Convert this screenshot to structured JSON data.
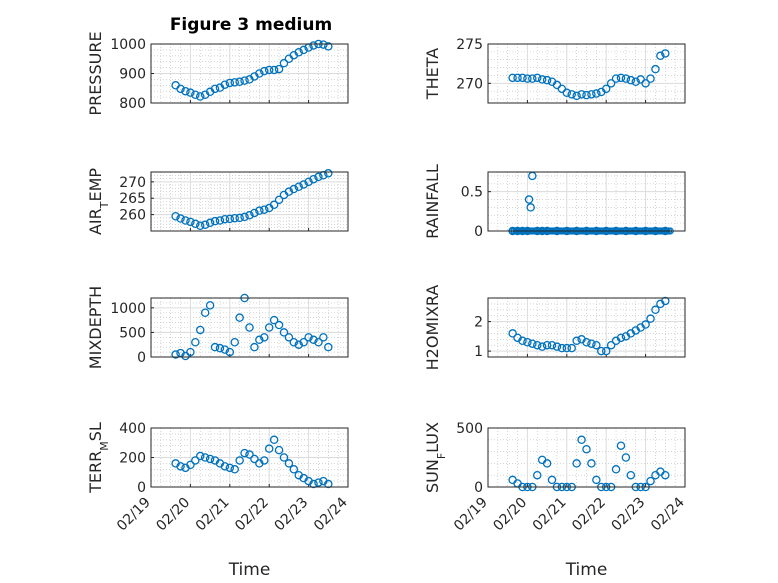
{
  "figure": {
    "title": "Figure 3 medium",
    "marker_color": "#0072BD",
    "axes_color": "#262626",
    "grid": true,
    "minor_grid": true
  },
  "chart_data": [
    {
      "type": "scatter",
      "ylabel": "PRESSURE",
      "ylim": [
        800,
        1000
      ],
      "yticks": [
        800,
        900,
        1000
      ],
      "ytick_labels": [
        "800",
        "900",
        "1000"
      ],
      "xlim": [
        "02/19",
        "02/24"
      ],
      "show_xticklabels": false,
      "x": [
        "02/19 15:00",
        "02/19 18:00",
        "02/19 21:00",
        "02/20 00:00",
        "02/20 03:00",
        "02/20 06:00",
        "02/20 09:00",
        "02/20 12:00",
        "02/20 15:00",
        "02/20 18:00",
        "02/20 21:00",
        "02/21 00:00",
        "02/21 03:00",
        "02/21 06:00",
        "02/21 09:00",
        "02/21 12:00",
        "02/21 15:00",
        "02/21 18:00",
        "02/21 21:00",
        "02/22 00:00",
        "02/22 03:00",
        "02/22 06:00",
        "02/22 09:00",
        "02/22 12:00",
        "02/22 15:00",
        "02/22 18:00",
        "02/22 21:00",
        "02/23 00:00",
        "02/23 03:00",
        "02/23 06:00",
        "02/23 09:00",
        "02/23 12:00"
      ],
      "y": [
        860,
        848,
        840,
        835,
        828,
        822,
        828,
        838,
        848,
        852,
        862,
        868,
        870,
        872,
        876,
        880,
        890,
        900,
        908,
        912,
        912,
        915,
        935,
        950,
        962,
        972,
        980,
        988,
        995,
        1000,
        998,
        992
      ]
    },
    {
      "type": "scatter",
      "ylabel": "THETA",
      "ylim": [
        267.5,
        275
      ],
      "yticks": [
        270,
        275
      ],
      "ytick_labels": [
        "270",
        "275"
      ],
      "xlim": [
        "02/19",
        "02/24"
      ],
      "show_xticklabels": false,
      "x": [
        "02/19 15:00",
        "02/19 18:00",
        "02/19 21:00",
        "02/20 00:00",
        "02/20 03:00",
        "02/20 06:00",
        "02/20 09:00",
        "02/20 12:00",
        "02/20 15:00",
        "02/20 18:00",
        "02/20 21:00",
        "02/21 00:00",
        "02/21 03:00",
        "02/21 06:00",
        "02/21 09:00",
        "02/21 12:00",
        "02/21 15:00",
        "02/21 18:00",
        "02/21 21:00",
        "02/22 00:00",
        "02/22 03:00",
        "02/22 06:00",
        "02/22 09:00",
        "02/22 12:00",
        "02/22 15:00",
        "02/22 18:00",
        "02/22 21:00",
        "02/23 00:00",
        "02/23 03:00",
        "02/23 06:00",
        "02/23 09:00",
        "02/23 12:00"
      ],
      "y": [
        270.7,
        270.7,
        270.7,
        270.6,
        270.6,
        270.7,
        270.5,
        270.4,
        270.2,
        269.8,
        269.3,
        268.8,
        268.6,
        268.4,
        268.6,
        268.5,
        268.6,
        268.7,
        268.9,
        269.3,
        270.0,
        270.6,
        270.7,
        270.6,
        270.4,
        270.2,
        270.5,
        270.0,
        270.6,
        271.8,
        273.5,
        273.8
      ]
    },
    {
      "type": "scatter",
      "ylabel": "AIR_TEMP",
      "ylim": [
        255,
        273
      ],
      "yticks": [
        260,
        265,
        270
      ],
      "ytick_labels": [
        "260",
        "265",
        "270"
      ],
      "xlim": [
        "02/19",
        "02/24"
      ],
      "show_xticklabels": false,
      "x": [
        "02/19 15:00",
        "02/19 18:00",
        "02/19 21:00",
        "02/20 00:00",
        "02/20 03:00",
        "02/20 06:00",
        "02/20 09:00",
        "02/20 12:00",
        "02/20 15:00",
        "02/20 18:00",
        "02/20 21:00",
        "02/21 00:00",
        "02/21 03:00",
        "02/21 06:00",
        "02/21 09:00",
        "02/21 12:00",
        "02/21 15:00",
        "02/21 18:00",
        "02/21 21:00",
        "02/22 00:00",
        "02/22 03:00",
        "02/22 06:00",
        "02/22 09:00",
        "02/22 12:00",
        "02/22 15:00",
        "02/22 18:00",
        "02/22 21:00",
        "02/23 00:00",
        "02/23 03:00",
        "02/23 06:00",
        "02/23 09:00",
        "02/23 12:00"
      ],
      "y": [
        259.5,
        258.8,
        258.2,
        257.8,
        257.2,
        256.6,
        256.9,
        257.5,
        258.0,
        258.2,
        258.6,
        258.7,
        258.9,
        259.0,
        259.3,
        259.8,
        260.5,
        261.2,
        261.5,
        262.0,
        263.0,
        264.5,
        266.0,
        267.0,
        267.8,
        268.5,
        269.2,
        270.0,
        270.8,
        271.5,
        272.0,
        272.6
      ]
    },
    {
      "type": "scatter",
      "ylabel": "RAINFALL",
      "ylim": [
        0,
        0.75
      ],
      "yticks": [
        0,
        0.5
      ],
      "ytick_labels": [
        "0",
        "0.5"
      ],
      "xlim": [
        "02/19",
        "02/24"
      ],
      "show_xticklabels": false,
      "x": [
        "02/19 15:00",
        "02/19 18:00",
        "02/19 21:00",
        "02/20 00:00",
        "02/20 01:00",
        "02/20 02:00",
        "02/20 03:00",
        "02/20 06:00",
        "02/20 09:00",
        "02/20 12:00",
        "02/20 18:00",
        "02/21 00:00",
        "02/21 06:00",
        "02/21 12:00",
        "02/21 18:00",
        "02/22 00:00",
        "02/22 06:00",
        "02/22 12:00",
        "02/22 18:00",
        "02/23 00:00",
        "02/23 06:00",
        "02/23 12:00"
      ],
      "y": [
        0,
        0,
        0,
        0,
        0.4,
        0.3,
        0.7,
        0,
        0,
        0,
        0,
        0,
        0,
        0,
        0,
        0,
        0,
        0,
        0,
        0,
        0,
        0
      ],
      "dense_zero_band": [
        "02/19 15:00",
        "02/23 15:00"
      ]
    },
    {
      "type": "scatter",
      "ylabel": "MIXDEPTH",
      "ylim": [
        0,
        1200
      ],
      "yticks": [
        0,
        500,
        1000
      ],
      "ytick_labels": [
        "0",
        "500",
        "1000"
      ],
      "xlim": [
        "02/19",
        "02/24"
      ],
      "show_xticklabels": false,
      "x": [
        "02/19 15:00",
        "02/19 18:00",
        "02/19 21:00",
        "02/20 00:00",
        "02/20 03:00",
        "02/20 06:00",
        "02/20 09:00",
        "02/20 12:00",
        "02/20 15:00",
        "02/20 18:00",
        "02/20 21:00",
        "02/21 00:00",
        "02/21 03:00",
        "02/21 06:00",
        "02/21 09:00",
        "02/21 12:00",
        "02/21 15:00",
        "02/21 18:00",
        "02/21 21:00",
        "02/22 00:00",
        "02/22 03:00",
        "02/22 06:00",
        "02/22 09:00",
        "02/22 12:00",
        "02/22 15:00",
        "02/22 18:00",
        "02/22 21:00",
        "02/23 00:00",
        "02/23 03:00",
        "02/23 06:00",
        "02/23 09:00",
        "02/23 12:00"
      ],
      "y": [
        50,
        80,
        20,
        100,
        300,
        550,
        900,
        1050,
        200,
        180,
        150,
        100,
        300,
        800,
        1200,
        600,
        200,
        350,
        400,
        600,
        750,
        650,
        500,
        400,
        300,
        250,
        300,
        400,
        350,
        300,
        400,
        200
      ]
    },
    {
      "type": "scatter",
      "ylabel": "H2OMIXRA",
      "ylim": [
        0.8,
        2.8
      ],
      "yticks": [
        1,
        2
      ],
      "ytick_labels": [
        "1",
        "2"
      ],
      "xlim": [
        "02/19",
        "02/24"
      ],
      "show_xticklabels": false,
      "x": [
        "02/19 15:00",
        "02/19 18:00",
        "02/19 21:00",
        "02/20 00:00",
        "02/20 03:00",
        "02/20 06:00",
        "02/20 09:00",
        "02/20 12:00",
        "02/20 15:00",
        "02/20 18:00",
        "02/20 21:00",
        "02/21 00:00",
        "02/21 03:00",
        "02/21 06:00",
        "02/21 09:00",
        "02/21 12:00",
        "02/21 15:00",
        "02/21 18:00",
        "02/21 21:00",
        "02/22 00:00",
        "02/22 03:00",
        "02/22 06:00",
        "02/22 09:00",
        "02/22 12:00",
        "02/22 15:00",
        "02/22 18:00",
        "02/22 21:00",
        "02/23 00:00",
        "02/23 03:00",
        "02/23 06:00",
        "02/23 09:00",
        "02/23 12:00"
      ],
      "y": [
        1.6,
        1.45,
        1.35,
        1.3,
        1.25,
        1.2,
        1.15,
        1.2,
        1.2,
        1.15,
        1.1,
        1.1,
        1.1,
        1.35,
        1.4,
        1.3,
        1.25,
        1.2,
        1.0,
        1.0,
        1.2,
        1.35,
        1.45,
        1.5,
        1.6,
        1.7,
        1.8,
        1.9,
        2.1,
        2.4,
        2.6,
        2.7
      ]
    },
    {
      "type": "scatter",
      "ylabel": "TERR_MSL",
      "ylim": [
        0,
        400
      ],
      "yticks": [
        0,
        200,
        400
      ],
      "ytick_labels": [
        "0",
        "200",
        "400"
      ],
      "xlim": [
        "02/19",
        "02/24"
      ],
      "xticks": [
        "02/19",
        "02/20",
        "02/21",
        "02/22",
        "02/23",
        "02/24"
      ],
      "xtick_labels": [
        "02/19",
        "02/20",
        "02/21",
        "02/22",
        "02/23",
        "02/24"
      ],
      "xlabel": "Time",
      "show_xticklabels": true,
      "x": [
        "02/19 15:00",
        "02/19 18:00",
        "02/19 21:00",
        "02/20 00:00",
        "02/20 03:00",
        "02/20 06:00",
        "02/20 09:00",
        "02/20 12:00",
        "02/20 15:00",
        "02/20 18:00",
        "02/20 21:00",
        "02/21 00:00",
        "02/21 03:00",
        "02/21 06:00",
        "02/21 09:00",
        "02/21 12:00",
        "02/21 15:00",
        "02/21 18:00",
        "02/21 21:00",
        "02/22 00:00",
        "02/22 03:00",
        "02/22 06:00",
        "02/22 09:00",
        "02/22 12:00",
        "02/22 15:00",
        "02/22 18:00",
        "02/22 21:00",
        "02/23 00:00",
        "02/23 03:00",
        "02/23 06:00",
        "02/23 09:00",
        "02/23 12:00"
      ],
      "y": [
        160,
        140,
        130,
        150,
        180,
        210,
        200,
        190,
        180,
        160,
        140,
        130,
        120,
        180,
        230,
        220,
        190,
        160,
        180,
        260,
        320,
        250,
        200,
        160,
        120,
        80,
        60,
        40,
        20,
        30,
        40,
        20
      ]
    },
    {
      "type": "scatter",
      "ylabel": "SUN_FLUX",
      "ylim": [
        0,
        500
      ],
      "yticks": [
        0,
        500
      ],
      "ytick_labels": [
        "0",
        "500"
      ],
      "xlim": [
        "02/19",
        "02/24"
      ],
      "xticks": [
        "02/19",
        "02/20",
        "02/21",
        "02/22",
        "02/23",
        "02/24"
      ],
      "xtick_labels": [
        "02/19",
        "02/20",
        "02/21",
        "02/22",
        "02/23",
        "02/24"
      ],
      "xlabel": "Time",
      "show_xticklabels": true,
      "x": [
        "02/19 15:00",
        "02/19 18:00",
        "02/19 21:00",
        "02/20 00:00",
        "02/20 03:00",
        "02/20 06:00",
        "02/20 09:00",
        "02/20 12:00",
        "02/20 15:00",
        "02/20 18:00",
        "02/20 21:00",
        "02/21 00:00",
        "02/21 03:00",
        "02/21 06:00",
        "02/21 09:00",
        "02/21 12:00",
        "02/21 15:00",
        "02/21 18:00",
        "02/21 21:00",
        "02/22 00:00",
        "02/22 03:00",
        "02/22 06:00",
        "02/22 09:00",
        "02/22 12:00",
        "02/22 15:00",
        "02/22 18:00",
        "02/22 21:00",
        "02/23 00:00",
        "02/23 03:00",
        "02/23 06:00",
        "02/23 09:00",
        "02/23 12:00"
      ],
      "y": [
        60,
        30,
        0,
        0,
        0,
        100,
        230,
        200,
        60,
        0,
        0,
        0,
        0,
        200,
        400,
        320,
        200,
        60,
        0,
        0,
        0,
        150,
        350,
        250,
        100,
        0,
        0,
        0,
        50,
        100,
        130,
        100
      ]
    }
  ]
}
